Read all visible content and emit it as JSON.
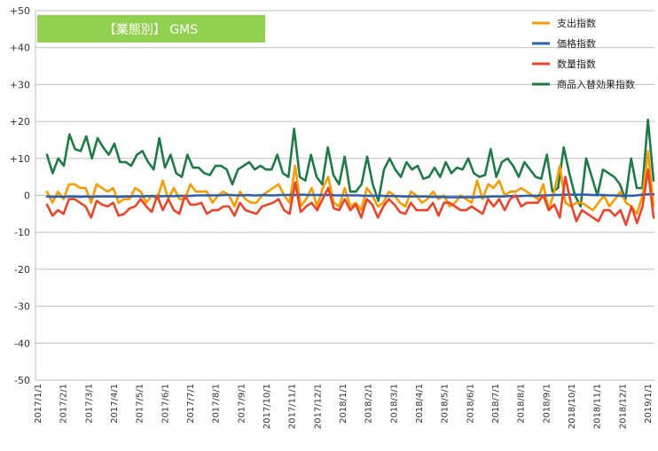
{
  "chart_data": {
    "type": "line",
    "title_label": "【業態別】 GMS",
    "title_box_color": "#92d050",
    "xlabel": "",
    "ylabel": "",
    "ylim": [
      -50,
      50
    ],
    "y_ticks": [
      {
        "value": 50,
        "label": "+50"
      },
      {
        "value": 40,
        "label": "+40"
      },
      {
        "value": 30,
        "label": "+30"
      },
      {
        "value": 20,
        "label": "+20"
      },
      {
        "value": 10,
        "label": "+10"
      },
      {
        "value": 0,
        "label": "0"
      },
      {
        "value": -10,
        "label": "-10"
      },
      {
        "value": -20,
        "label": "-20"
      },
      {
        "value": -30,
        "label": "-30"
      },
      {
        "value": -40,
        "label": "-40"
      },
      {
        "value": -50,
        "label": "-50"
      }
    ],
    "x_tick_labels": [
      "2017/1/1",
      "2017/2/1",
      "2017/3/1",
      "2017/4/1",
      "2017/5/1",
      "2017/6/1",
      "2017/7/1",
      "2017/8/1",
      "2017/9/1",
      "2017/10/1",
      "2017/11/1",
      "2017/12/1",
      "2018/1/1",
      "2018/2/1",
      "2018/3/1",
      "2018/4/1",
      "2018/5/1",
      "2018/6/1",
      "2018/7/1",
      "2018/8/1",
      "2018/9/1",
      "2018/10/1",
      "2018/11/1",
      "2018/12/1",
      "2019/1/1"
    ],
    "grid": "horizontal",
    "legend_position": "top-right",
    "series": [
      {
        "name": "支出指数",
        "color": "#f59c00",
        "values": [
          1,
          -2,
          1,
          -1,
          3,
          3,
          2,
          2,
          -2,
          3,
          2,
          1,
          2,
          -2,
          -1,
          -1,
          2,
          1,
          -2,
          0,
          -1,
          4,
          -1,
          2,
          -1,
          -1,
          3,
          1,
          1,
          1,
          -2,
          0,
          1,
          0,
          -3,
          1,
          -1,
          -2,
          -2,
          0,
          1,
          2,
          3,
          0,
          -2,
          8,
          -3,
          -1,
          2,
          -3,
          2,
          5,
          -2,
          -3,
          2,
          -3,
          -2,
          -4,
          2,
          0,
          -3,
          -2,
          1,
          0,
          -2,
          -3,
          1,
          0,
          -2,
          -1,
          1,
          -1,
          0,
          -3,
          -2,
          0,
          -1,
          -2,
          4,
          -1,
          3,
          2,
          4,
          0,
          1,
          1,
          2,
          1,
          0,
          -1,
          3,
          -4,
          1,
          8,
          -2,
          -3,
          -2,
          -2,
          -3,
          -4,
          -2,
          0,
          -3,
          -1,
          1,
          -2,
          -3,
          -5,
          0,
          12,
          -3
        ]
      },
      {
        "name": "価格指数",
        "color": "#2e5fad",
        "values": [
          -0.3,
          -0.4,
          -0.3,
          -0.4,
          -0.3,
          -0.3,
          -0.4,
          -0.3,
          -0.4,
          -0.3,
          -0.3,
          -0.3,
          -0.3,
          -0.4,
          -0.3,
          -0.3,
          -0.2,
          -0.3,
          -0.2,
          -0.2,
          -0.3,
          -0.2,
          -0.2,
          -0.2,
          -0.1,
          -0.2,
          -0.1,
          0,
          0,
          0,
          0,
          0,
          0.1,
          0.1,
          0,
          0,
          0.1,
          0,
          0,
          0.1,
          0,
          0,
          0.1,
          0.1,
          0.1,
          0.1,
          0.2,
          0.1,
          0.1,
          0.1,
          0.1,
          0.1,
          0,
          0,
          0,
          0,
          0,
          -0.1,
          -0.1,
          -0.1,
          -0.1,
          -0.2,
          -0.2,
          -0.2,
          -0.3,
          -0.3,
          -0.3,
          -0.3,
          -0.3,
          -0.4,
          -0.4,
          -0.4,
          -0.5,
          -0.5,
          -0.5,
          -0.5,
          -0.5,
          -0.5,
          -0.4,
          -0.4,
          -0.3,
          -0.3,
          -0.3,
          -0.2,
          -0.2,
          -0.2,
          -0.1,
          -0.1,
          -0.1,
          0,
          0,
          0.1,
          0.1,
          0.2,
          0.2,
          0.2,
          0.2,
          0.2,
          0.1,
          0.1,
          0.1,
          0,
          0,
          -0.1,
          -0.1,
          -0.1,
          0,
          0.2,
          0.3,
          0.3
        ]
      },
      {
        "name": "数量指数",
        "color": "#e8452c",
        "values": [
          -2.5,
          -5.5,
          -4,
          -5,
          -1,
          -1,
          -2,
          -3,
          -6,
          -1.5,
          -2.5,
          -3,
          -2,
          -5.5,
          -5,
          -3.5,
          -3,
          -1,
          -3,
          -4.5,
          0,
          -4,
          -1,
          -4,
          -5,
          0,
          -2.5,
          -2.5,
          -2,
          -5,
          -4,
          -4,
          -3,
          -3,
          -5.5,
          -2,
          -4,
          -4.5,
          -5,
          -3,
          -2.5,
          -2,
          -1,
          -4,
          -5,
          3.5,
          -4.5,
          -3,
          -2,
          -4,
          -1,
          2,
          -3.5,
          -4,
          -1,
          -4,
          -2.5,
          -6,
          -1,
          -2.5,
          -6,
          -3,
          -1,
          -2.5,
          -4.5,
          -5,
          -2,
          -4,
          -4,
          -4,
          -2,
          -5.5,
          -2,
          -2,
          -3,
          -4,
          -4,
          -3,
          -4,
          -5,
          -1,
          -3,
          -1,
          -4,
          -1,
          0,
          -3,
          -2,
          -2,
          -2,
          0,
          -4,
          -2.5,
          -6,
          5,
          -2,
          -7,
          -4,
          -5,
          -6,
          -7,
          -4,
          -4,
          -5.5,
          -4,
          -8,
          -3,
          -7.5,
          -3,
          7,
          -6
        ]
      },
      {
        "name": "商品入替効果指数",
        "color": "#217a45",
        "values": [
          11,
          6,
          10,
          8,
          16.5,
          12.5,
          12,
          16,
          10,
          15.5,
          13,
          11,
          14,
          9,
          9,
          8,
          11,
          12,
          9,
          7,
          15.5,
          7.5,
          11,
          6,
          5,
          11,
          7.5,
          7.5,
          6,
          5.5,
          8,
          8,
          7,
          3,
          7,
          8,
          9,
          7,
          8,
          7,
          7,
          11,
          6,
          5,
          18,
          5,
          4,
          11,
          5,
          3,
          13,
          5.5,
          3,
          10.5,
          1,
          1,
          3,
          10.5,
          3,
          -1.5,
          7,
          10,
          7,
          5,
          9,
          7,
          8,
          4.5,
          5,
          7.5,
          5,
          9,
          6,
          7.5,
          7,
          10,
          6,
          5,
          5.5,
          12.5,
          5,
          9,
          10,
          8,
          5,
          9,
          7,
          5,
          4.5,
          11,
          1,
          2,
          13,
          6,
          0,
          -3,
          10,
          5,
          0,
          7,
          6,
          5,
          3,
          -1,
          10,
          2,
          2,
          20.5,
          4
        ]
      }
    ]
  }
}
